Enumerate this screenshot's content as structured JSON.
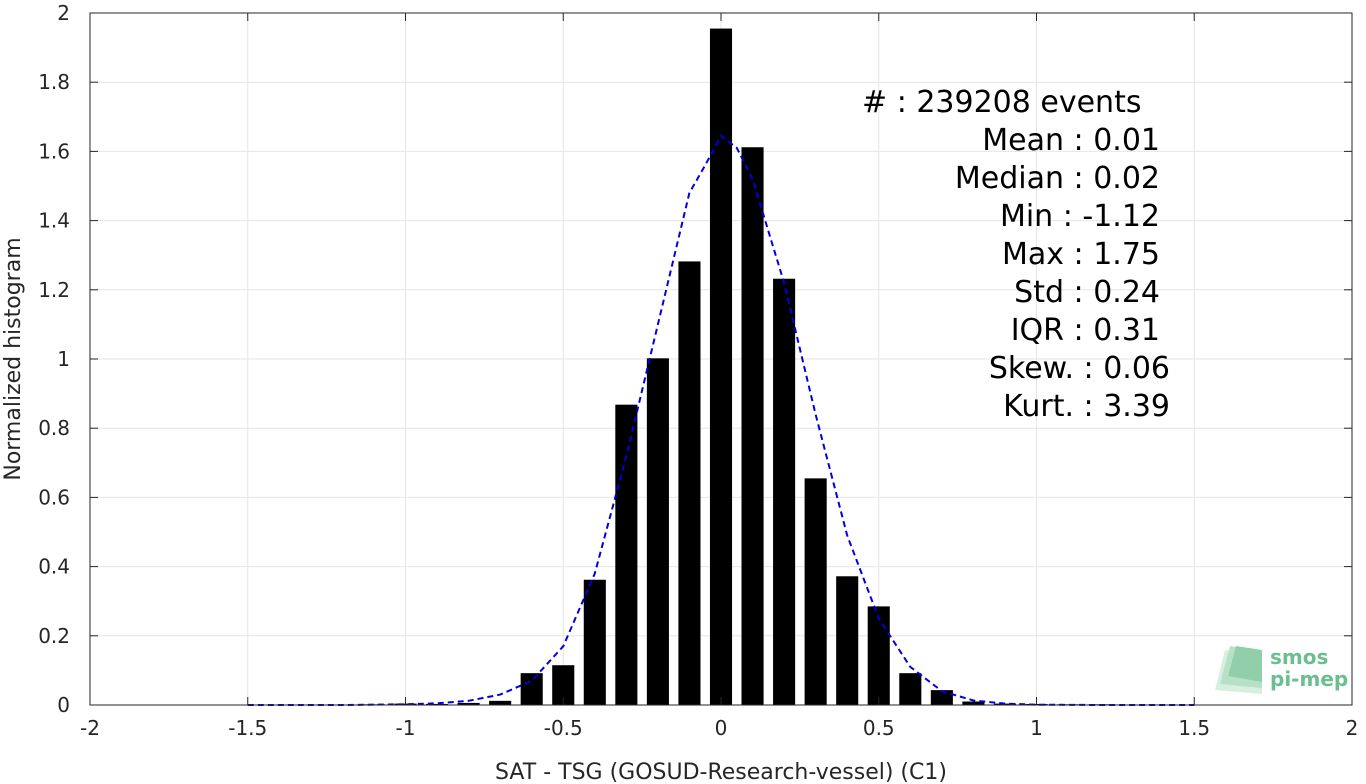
{
  "chart_data": {
    "type": "bar",
    "xlabel": "SAT - TSG (GOSUD-Research-vessel) (C1)",
    "ylabel": "Normalized histogram",
    "xlim": [
      -2,
      2
    ],
    "ylim": [
      0,
      2
    ],
    "xticks": [
      -2,
      -1.5,
      -1,
      -0.5,
      0,
      0.5,
      1,
      1.5,
      2
    ],
    "yticks": [
      0,
      0.2,
      0.4,
      0.6,
      0.8,
      1,
      1.2,
      1.4,
      1.6,
      1.8,
      2
    ],
    "xtick_labels": [
      "-2",
      "-1.5",
      "-1",
      "-0.5",
      "0",
      "0.5",
      "1",
      "1.5",
      "2"
    ],
    "ytick_labels": [
      "0",
      "0.2",
      "0.4",
      "0.6",
      "0.8",
      "1",
      "1.2",
      "1.4",
      "1.6",
      "1.8",
      "2"
    ],
    "grid": true,
    "bar_width": 0.07,
    "bars": {
      "x": [
        -1.1,
        -1.0,
        -0.9,
        -0.8,
        -0.7,
        -0.6,
        -0.5,
        -0.4,
        -0.3,
        -0.2,
        -0.1,
        0.0,
        0.1,
        0.2,
        0.3,
        0.4,
        0.5,
        0.6,
        0.7,
        0.8,
        0.9,
        1.0,
        1.1,
        1.2,
        1.3,
        1.4,
        1.5
      ],
      "y": [
        0.002,
        0.004,
        0.003,
        0.006,
        0.012,
        0.092,
        0.115,
        0.362,
        0.868,
        1.002,
        1.282,
        1.955,
        1.612,
        1.232,
        0.655,
        0.372,
        0.285,
        0.092,
        0.043,
        0.01,
        0.004,
        0.003,
        0.002,
        0.002,
        0.001,
        0.001,
        0.001
      ]
    },
    "fit_curve": {
      "style": "dashed",
      "color": "#0000dd",
      "x": [
        -1.5,
        -1.2,
        -1.0,
        -0.9,
        -0.8,
        -0.7,
        -0.6,
        -0.5,
        -0.4,
        -0.3,
        -0.2,
        -0.1,
        -0.05,
        0.0,
        0.05,
        0.1,
        0.2,
        0.3,
        0.4,
        0.5,
        0.6,
        0.7,
        0.8,
        0.9,
        1.0,
        1.2,
        1.5
      ],
      "y": [
        0.0,
        0.0,
        0.002,
        0.005,
        0.012,
        0.03,
        0.07,
        0.17,
        0.38,
        0.72,
        1.1,
        1.48,
        1.56,
        1.645,
        1.61,
        1.52,
        1.22,
        0.84,
        0.49,
        0.25,
        0.11,
        0.04,
        0.013,
        0.004,
        0.001,
        0.0,
        0.0
      ]
    },
    "stats": [
      {
        "label": "#",
        "value": ": 239208 events"
      },
      {
        "label": "Mean",
        "value": ": 0.01"
      },
      {
        "label": "Median",
        "value": ": 0.02"
      },
      {
        "label": "Min",
        "value": ": -1.12"
      },
      {
        "label": "Max",
        "value": ": 1.75"
      },
      {
        "label": "Std",
        "value": ": 0.24"
      },
      {
        "label": "IQR",
        "value": ": 0.31"
      },
      {
        "label": "Skew.",
        "value": ": 0.06"
      },
      {
        "label": "Kurt.",
        "value": ": 3.39"
      }
    ],
    "bar_color": "#000000",
    "grid_color": "#e6e6e6"
  },
  "logo": {
    "line1": "smos",
    "line2": "pi-mep",
    "color": "#6bbf8e"
  }
}
